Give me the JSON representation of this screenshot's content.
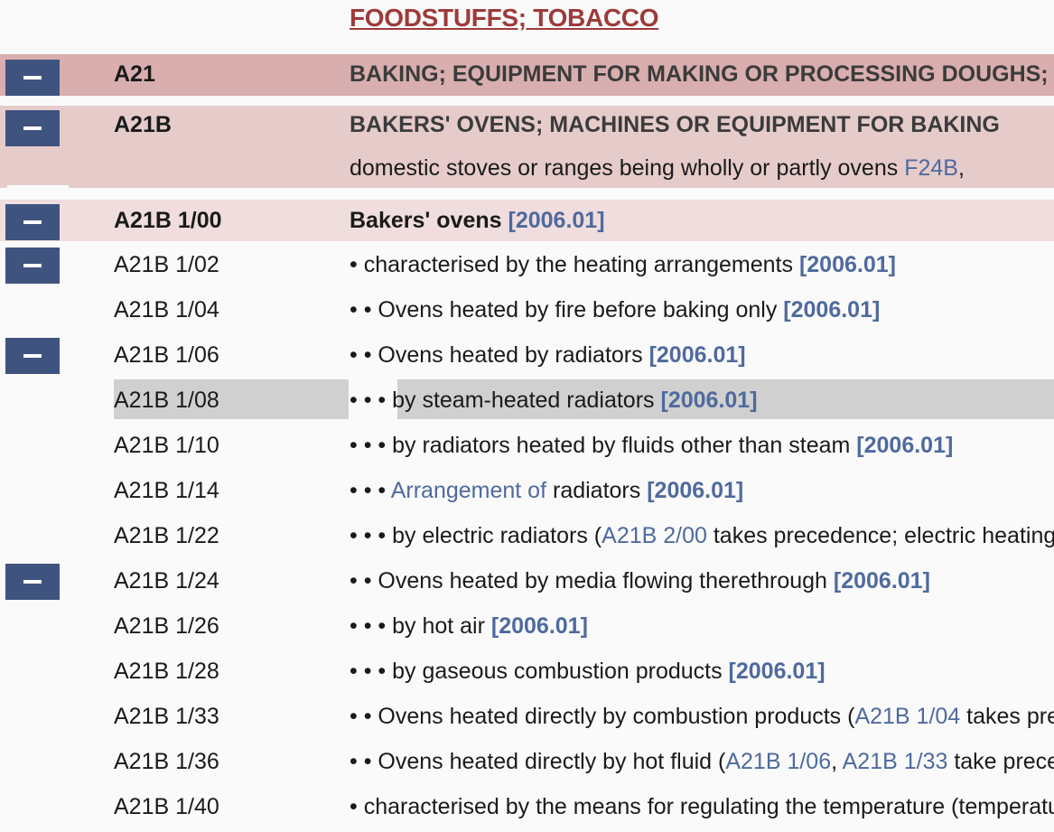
{
  "header": {
    "title": "FOODSTUFFS; TOBACCO"
  },
  "a21": {
    "symbol": "A21",
    "title": "BAKING; EQUIPMENT FOR MAKING OR PROCESSING DOUGHS; DOUGHS FOR BAKING"
  },
  "a21b": {
    "symbol": "A21B",
    "title": "BAKERS' OVENS; MACHINES OR EQUIPMENT FOR BAKING",
    "note_text": "domestic stoves or ranges being wholly or partly ovens ",
    "note_link": "F24B",
    "note_tail": ", "
  },
  "rows": [
    {
      "symbol": "A21B 1/00",
      "dots": "",
      "pre": "",
      "link": "",
      "text": "Bakers' ovens ",
      "ver": "[2006.01]"
    },
    {
      "symbol": "A21B 1/02",
      "dots": "• ",
      "pre": "",
      "link": "",
      "text": "characterised by the heating arrangements ",
      "ver": "[2006.01]"
    },
    {
      "symbol": "A21B 1/04",
      "dots": "• • ",
      "pre": "",
      "link": "",
      "text": "Ovens heated by fire before baking only ",
      "ver": "[2006.01]"
    },
    {
      "symbol": "A21B 1/06",
      "dots": "• • ",
      "pre": "",
      "link": "",
      "text": "Ovens heated by radiators ",
      "ver": "[2006.01]"
    },
    {
      "symbol": "A21B 1/08",
      "dots": "• • • ",
      "pre": "",
      "link": "",
      "text": "by steam-heated radiators ",
      "ver": "[2006.01]"
    },
    {
      "symbol": "A21B 1/10",
      "dots": "• • • ",
      "pre": "",
      "link": "",
      "text": "by radiators heated by fluids other than steam ",
      "ver": "[2006.01]"
    },
    {
      "symbol": "A21B 1/14",
      "dots": "• • • ",
      "pre": "",
      "link": "Arrangement of",
      "text": " radiators ",
      "ver": "[2006.01]"
    },
    {
      "symbol": "A21B 1/22",
      "dots": "• • • ",
      "pre": "by electric radiators (",
      "link": "A21B 2/00",
      "text": " takes precedence; electric heating elements",
      "ver": ""
    },
    {
      "symbol": "A21B 1/24",
      "dots": "• • ",
      "pre": "",
      "link": "",
      "text": "Ovens heated by media flowing therethrough ",
      "ver": "[2006.01]"
    },
    {
      "symbol": "A21B 1/26",
      "dots": "• • • ",
      "pre": "",
      "link": "",
      "text": "by hot air ",
      "ver": "[2006.01]"
    },
    {
      "symbol": "A21B 1/28",
      "dots": "• • • ",
      "pre": "",
      "link": "",
      "text": "by gaseous combustion products ",
      "ver": "[2006.01]"
    },
    {
      "symbol": "A21B 1/33",
      "dots": "• • ",
      "pre": "Ovens heated directly by combustion products (",
      "link": "A21B 1/04",
      "text": " takes precedence)",
      "ver": ""
    },
    {
      "symbol": "A21B 1/36",
      "dots": "• • ",
      "pre": "Ovens heated directly by hot fluid (",
      "link": "A21B 1/06",
      "text": ", ",
      "link2": "A21B 1/33",
      "text2": " take precedence)",
      "ver": ""
    },
    {
      "symbol": "A21B 1/40",
      "dots": "• ",
      "pre": "",
      "link": "",
      "text": "characterised by the means for regulating the temperature (temperature control in general",
      "ver": ""
    }
  ]
}
